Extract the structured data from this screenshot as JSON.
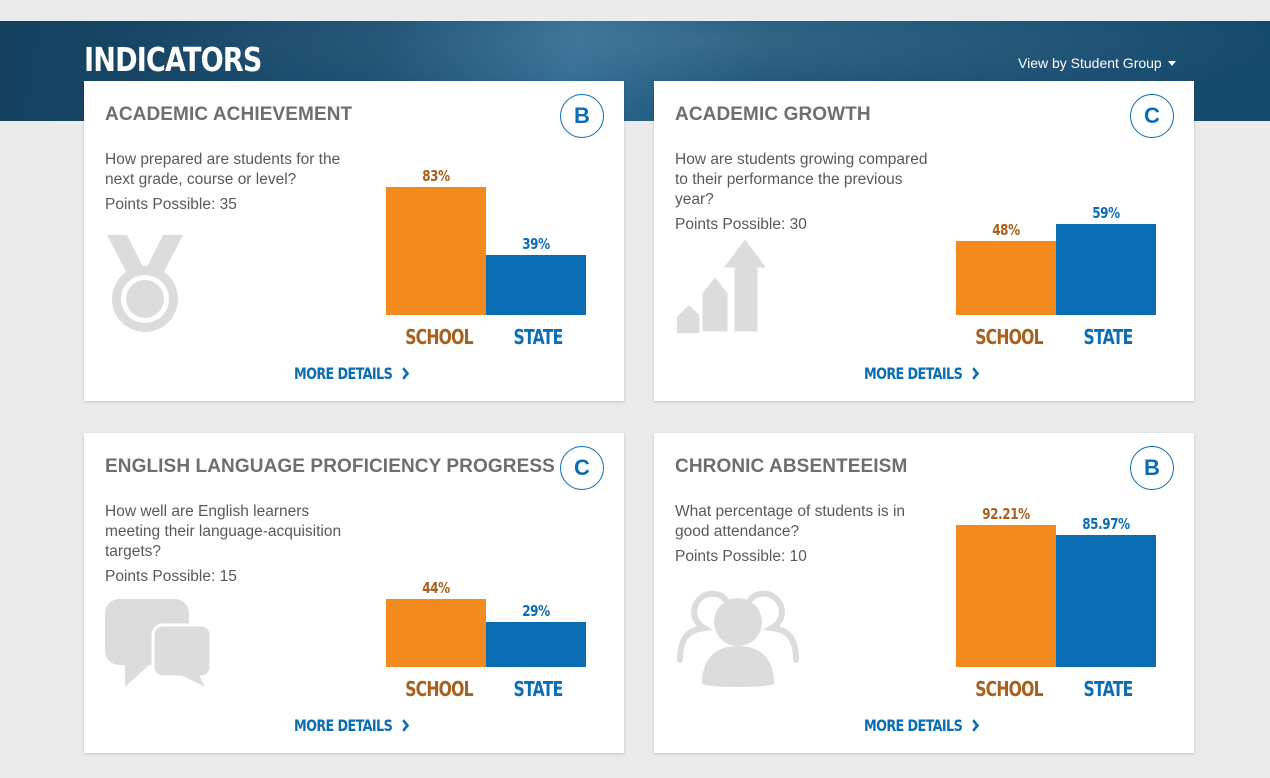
{
  "header": {
    "title": "INDICATORS",
    "view_toggle_label": "View by Student Group"
  },
  "colors": {
    "banner": "#1b4e71",
    "school": "#f38a1e",
    "state": "#0b6eb5",
    "grade": "#0b6eb5",
    "text": "#58595b"
  },
  "cards": [
    {
      "title": "ACADEMIC ACHIEVEMENT",
      "grade": "B",
      "question": "How prepared are students for the next grade, course or level?",
      "points_label": "Points Possible: 35",
      "icon": "medal-icon",
      "school_value": 83,
      "school_label": "83%",
      "state_value": 39,
      "state_label": "39%",
      "school_axis": "SCHOOL",
      "state_axis": "STATE",
      "more_details": "MORE DETAILS"
    },
    {
      "title": "ACADEMIC GROWTH",
      "grade": "C",
      "question": "How are students growing compared to their performance the previous year?",
      "points_label": "Points Possible: 30",
      "icon": "growth-arrows-icon",
      "school_value": 48,
      "school_label": "48%",
      "state_value": 59,
      "state_label": "59%",
      "school_axis": "SCHOOL",
      "state_axis": "STATE",
      "more_details": "MORE DETAILS"
    },
    {
      "title": "ENGLISH LANGUAGE PROFICIENCY PROGRESS",
      "grade": "C",
      "question": "How well are English learners meeting their language-acquisition targets?",
      "points_label": "Points Possible: 15",
      "icon": "speech-bubbles-icon",
      "school_value": 44,
      "school_label": "44%",
      "state_value": 29,
      "state_label": "29%",
      "school_axis": "SCHOOL",
      "state_axis": "STATE",
      "more_details": "MORE DETAILS"
    },
    {
      "title": "CHRONIC ABSENTEEISM",
      "grade": "B",
      "question": "What percentage of students is in good attendance?",
      "points_label": "Points Possible: 10",
      "icon": "people-group-icon",
      "school_value": 92.21,
      "school_label": "92.21%",
      "state_value": 85.97,
      "state_label": "85.97%",
      "school_axis": "SCHOOL",
      "state_axis": "STATE",
      "more_details": "MORE DETAILS"
    }
  ]
}
